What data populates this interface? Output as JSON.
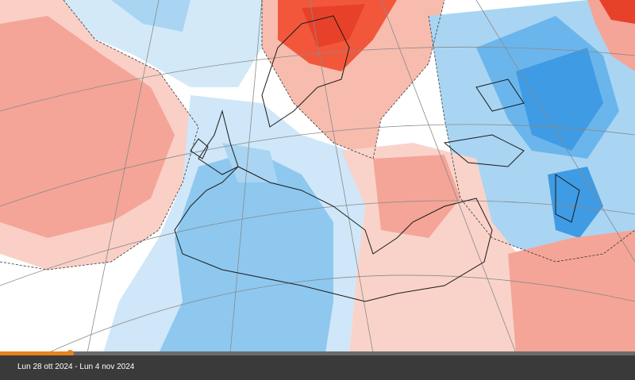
{
  "caption": "Lun 28 ott 2024 - Lun 4 nov 2024"
}
